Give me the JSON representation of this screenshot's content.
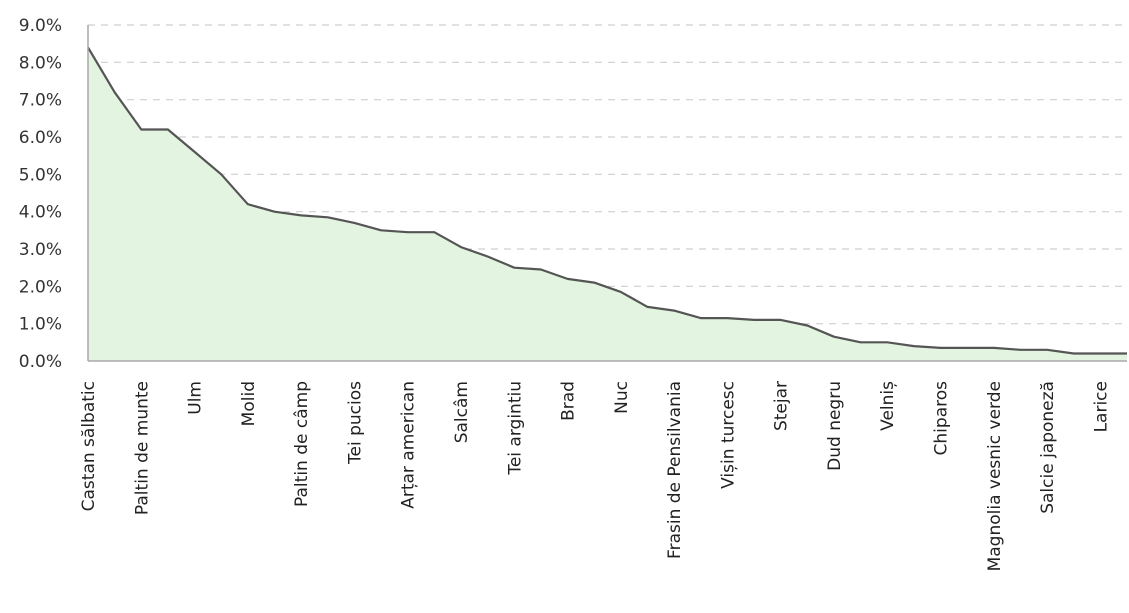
{
  "chart_data": {
    "type": "area",
    "title": "",
    "xlabel": "",
    "ylabel": "",
    "ylim": [
      0,
      9
    ],
    "yticks": [
      "0.0%",
      "1.0%",
      "2.0%",
      "3.0%",
      "4.0%",
      "5.0%",
      "6.0%",
      "7.0%",
      "8.0%",
      "9.0%"
    ],
    "grid": true,
    "fill_color": "#e3f5e1",
    "line_color": "#555555",
    "categories": [
      "Castan sălbatic",
      "",
      "Paltin de munte",
      "",
      "Ulm",
      "",
      "Molid",
      "",
      "Paltin de câmp",
      "",
      "Tei pucios",
      "",
      "Arțar american",
      "",
      "Salcâm",
      "",
      "Tei argintiu",
      "",
      "Brad",
      "",
      "Nuc",
      "",
      "Frasin de Pensilvania",
      "",
      "Vișin turcesc",
      "",
      "Stejar",
      "",
      "Dud negru",
      "",
      "Velniș",
      "",
      "Chiparos",
      "",
      "Magnolia vesnic verde",
      "",
      "Salcie japoneză",
      "",
      "Larice",
      ""
    ],
    "values": [
      8.4,
      7.2,
      6.2,
      6.2,
      5.6,
      5.0,
      4.2,
      4.0,
      3.9,
      3.85,
      3.7,
      3.5,
      3.45,
      3.45,
      3.05,
      2.8,
      2.5,
      2.45,
      2.2,
      2.1,
      1.85,
      1.45,
      1.35,
      1.15,
      1.15,
      1.1,
      1.1,
      0.95,
      0.65,
      0.5,
      0.5,
      0.4,
      0.35,
      0.35,
      0.35,
      0.3,
      0.3,
      0.2,
      0.2,
      0.2
    ]
  }
}
